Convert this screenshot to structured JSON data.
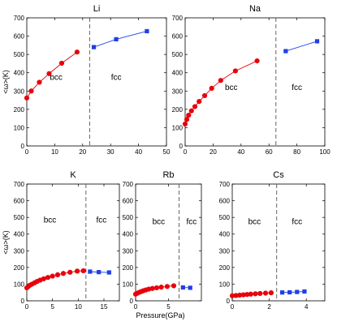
{
  "chart_data": [
    {
      "type": "scatter",
      "title": "Li",
      "ylabel": "<ω>(K)",
      "xlabel": "",
      "xlim": [
        0,
        50
      ],
      "ylim": [
        0,
        700
      ],
      "xticks": [
        0,
        10,
        20,
        30,
        40,
        50
      ],
      "yticks": [
        0,
        100,
        200,
        300,
        400,
        500,
        600,
        700
      ],
      "transition_x": 22.5,
      "phase_labels": [
        {
          "text": "bcc",
          "x": 10.5,
          "y": 360
        },
        {
          "text": "fcc",
          "x": 32,
          "y": 360
        }
      ],
      "series": [
        {
          "name": "bcc",
          "marker": "circle",
          "color": "#e8000b",
          "x": [
            0,
            1.6,
            4.5,
            8,
            12.5,
            18
          ],
          "y": [
            262,
            300,
            348,
            395,
            452,
            513
          ]
        },
        {
          "name": "fcc",
          "marker": "square",
          "color": "#1f3fe6",
          "x": [
            24,
            32,
            43
          ],
          "y": [
            540,
            583,
            627
          ]
        }
      ]
    },
    {
      "type": "scatter",
      "title": "Na",
      "ylabel": "",
      "xlabel": "",
      "xlim": [
        0,
        100
      ],
      "ylim": [
        0,
        700
      ],
      "xticks": [
        0,
        20,
        40,
        60,
        80,
        100
      ],
      "yticks": [
        0,
        100,
        200,
        300,
        400,
        500,
        600,
        700
      ],
      "transition_x": 65,
      "phase_labels": [
        {
          "text": "bcc",
          "x": 33,
          "y": 305
        },
        {
          "text": "fcc",
          "x": 80,
          "y": 305
        }
      ],
      "series": [
        {
          "name": "bcc",
          "marker": "circle",
          "color": "#e8000b",
          "x": [
            0,
            1.2,
            2.5,
            4.5,
            7,
            10,
            14,
            19,
            25.5,
            36,
            51.5
          ],
          "y": [
            120,
            145,
            168,
            192,
            215,
            243,
            275,
            315,
            358,
            410,
            465
          ]
        },
        {
          "name": "fcc",
          "marker": "square",
          "color": "#1f3fe6",
          "x": [
            72,
            94.5
          ],
          "y": [
            518,
            572
          ]
        }
      ]
    },
    {
      "type": "scatter",
      "title": "K",
      "ylabel": "<ω>(K)",
      "xlabel": "",
      "xlim": [
        0,
        18
      ],
      "ylim": [
        0,
        700
      ],
      "xticks": [
        0,
        5,
        10,
        15
      ],
      "yticks": [
        0,
        100,
        200,
        300,
        400,
        500,
        600,
        700
      ],
      "transition_x": 11.5,
      "phase_labels": [
        {
          "text": "bcc",
          "x": 4.5,
          "y": 470
        },
        {
          "text": "fcc",
          "x": 14.5,
          "y": 470
        }
      ],
      "series": [
        {
          "name": "bcc",
          "marker": "circle",
          "color": "#e8000b",
          "x": [
            0,
            0.3,
            0.6,
            1,
            1.5,
            2,
            2.6,
            3.3,
            4.1,
            5,
            6,
            7.1,
            8.4,
            9.8,
            11
          ],
          "y": [
            78,
            86,
            93,
            100,
            108,
            116,
            124,
            132,
            140,
            148,
            156,
            164,
            171,
            178,
            180
          ]
        },
        {
          "name": "fcc",
          "marker": "square",
          "color": "#1f3fe6",
          "x": [
            12.3,
            14,
            16
          ],
          "y": [
            175,
            172,
            170
          ]
        }
      ]
    },
    {
      "type": "scatter",
      "title": "Rb",
      "ylabel": "",
      "xlabel": "Pressure(GPa)",
      "xlim": [
        0,
        10
      ],
      "ylim": [
        0,
        700
      ],
      "xticks": [
        0,
        5
      ],
      "yticks": [
        0,
        100,
        200,
        300,
        400,
        500,
        600,
        700
      ],
      "transition_x": 6.6,
      "phase_labels": [
        {
          "text": "bcc",
          "x": 3.5,
          "y": 460
        },
        {
          "text": "fcc",
          "x": 8.5,
          "y": 460
        }
      ],
      "series": [
        {
          "name": "bcc",
          "marker": "circle",
          "color": "#e8000b",
          "x": [
            0,
            0.25,
            0.5,
            0.8,
            1.15,
            1.55,
            2,
            2.55,
            3.2,
            3.9,
            4.8,
            5.8
          ],
          "y": [
            40,
            45,
            50,
            55,
            60,
            65,
            70,
            74,
            78,
            82,
            86,
            90
          ]
        },
        {
          "name": "fcc",
          "marker": "square",
          "color": "#1f3fe6",
          "x": [
            7.2,
            8.3
          ],
          "y": [
            80,
            78
          ]
        }
      ]
    },
    {
      "type": "scatter",
      "title": "Cs",
      "ylabel": "",
      "xlabel": "",
      "xlim": [
        0,
        5
      ],
      "ylim": [
        0,
        700
      ],
      "xticks": [
        0,
        2,
        4
      ],
      "yticks": [
        0,
        100,
        200,
        300,
        400,
        500,
        600,
        700
      ],
      "transition_x": 2.4,
      "phase_labels": [
        {
          "text": "bcc",
          "x": 1.2,
          "y": 460
        },
        {
          "text": "fcc",
          "x": 3.5,
          "y": 460
        }
      ],
      "series": [
        {
          "name": "bcc",
          "marker": "circle",
          "color": "#e8000b",
          "x": [
            0,
            0.2,
            0.4,
            0.6,
            0.8,
            1.0,
            1.25,
            1.5,
            1.8,
            2.1
          ],
          "y": [
            30,
            32,
            34,
            36,
            38,
            40,
            42,
            44,
            46,
            48
          ]
        },
        {
          "name": "fcc",
          "marker": "square",
          "color": "#1f3fe6",
          "x": [
            2.7,
            3.1,
            3.5,
            3.9
          ],
          "y": [
            50,
            51,
            53,
            56
          ]
        }
      ]
    }
  ]
}
